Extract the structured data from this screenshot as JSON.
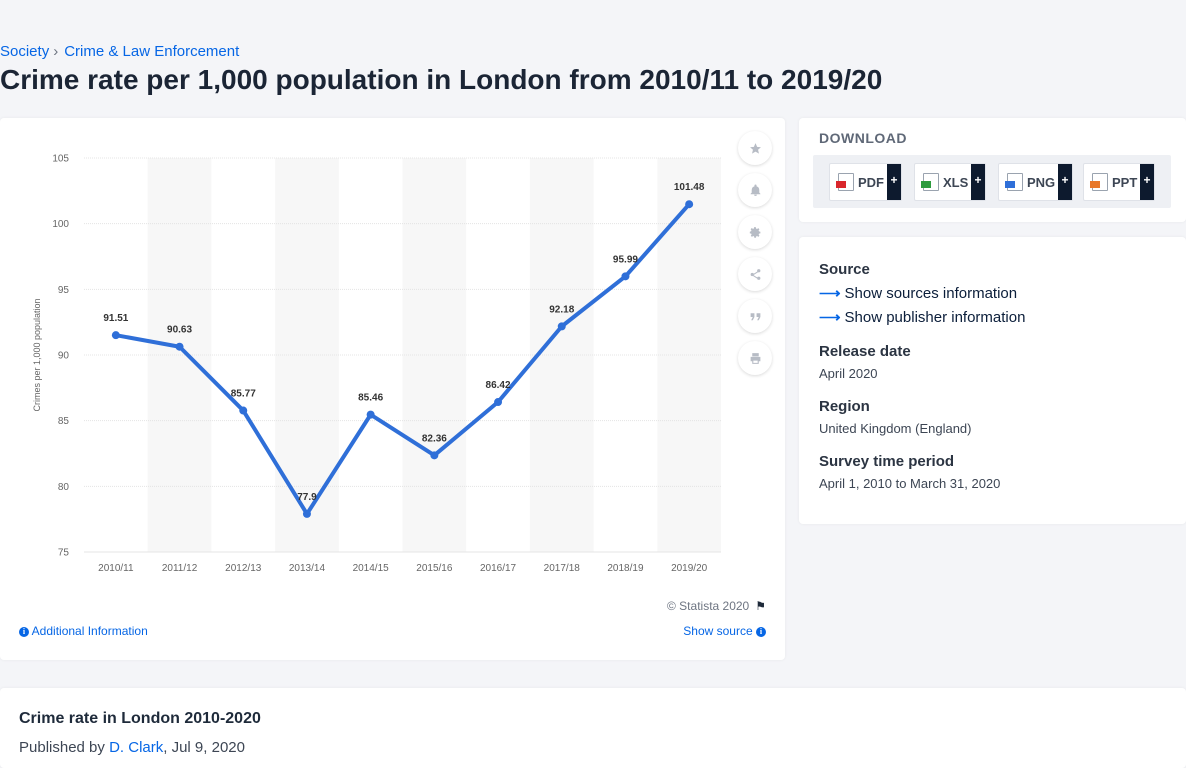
{
  "breadcrumb": {
    "level1": "Society",
    "level2": "Crime & Law Enforcement"
  },
  "page_title": "Crime rate per 1,000 population in London from 2010/11 to 2019/20",
  "chart_data": {
    "type": "line",
    "title": "",
    "xlabel": "",
    "ylabel": "Crimes per 1,000 population",
    "categories": [
      "2010/11",
      "2011/12",
      "2012/13",
      "2013/14",
      "2014/15",
      "2015/16",
      "2016/17",
      "2017/18",
      "2018/19",
      "2019/20"
    ],
    "values": [
      91.51,
      90.63,
      85.77,
      77.9,
      85.46,
      82.36,
      86.42,
      92.18,
      95.99,
      101.48
    ],
    "data_labels": [
      "91.51",
      "90.63",
      "85.77",
      "77.9",
      "85.46",
      "82.36",
      "86.42",
      "92.18",
      "95.99",
      "101.48"
    ],
    "ylim": [
      75,
      105
    ],
    "yticks": [
      75,
      80,
      85,
      90,
      95,
      100,
      105
    ],
    "grid": true,
    "alternating_column_shading": true,
    "line_color": "#2f6fd8"
  },
  "chart_footer": {
    "copyright": "© Statista 2020",
    "additional_info": "Additional Information",
    "show_source": "Show source"
  },
  "side_tools": [
    "star-icon",
    "bell-icon",
    "gear-icon",
    "share-icon",
    "quote-icon",
    "print-icon"
  ],
  "download": {
    "heading": "DOWNLOAD",
    "buttons": [
      {
        "label": "PDF",
        "plus": "+",
        "color": "#d9262b"
      },
      {
        "label": "XLS",
        "plus": "+",
        "color": "#2e9b3e"
      },
      {
        "label": "PNG",
        "plus": "+",
        "color": "#2f6fd8"
      },
      {
        "label": "PPT",
        "plus": "+",
        "color": "#e8782a"
      }
    ]
  },
  "info": {
    "source_label": "Source",
    "show_sources": "Show sources information",
    "show_publisher": "Show publisher information",
    "release_label": "Release date",
    "release_value": "April 2020",
    "region_label": "Region",
    "region_value": "United Kingdom (England)",
    "survey_label": "Survey time period",
    "survey_value": "April 1, 2010 to March 31, 2020"
  },
  "publication": {
    "title": "Crime rate in London 2010-2020",
    "published_by": "Published by",
    "author": "D. Clark",
    "date": ", Jul 9, 2020"
  }
}
